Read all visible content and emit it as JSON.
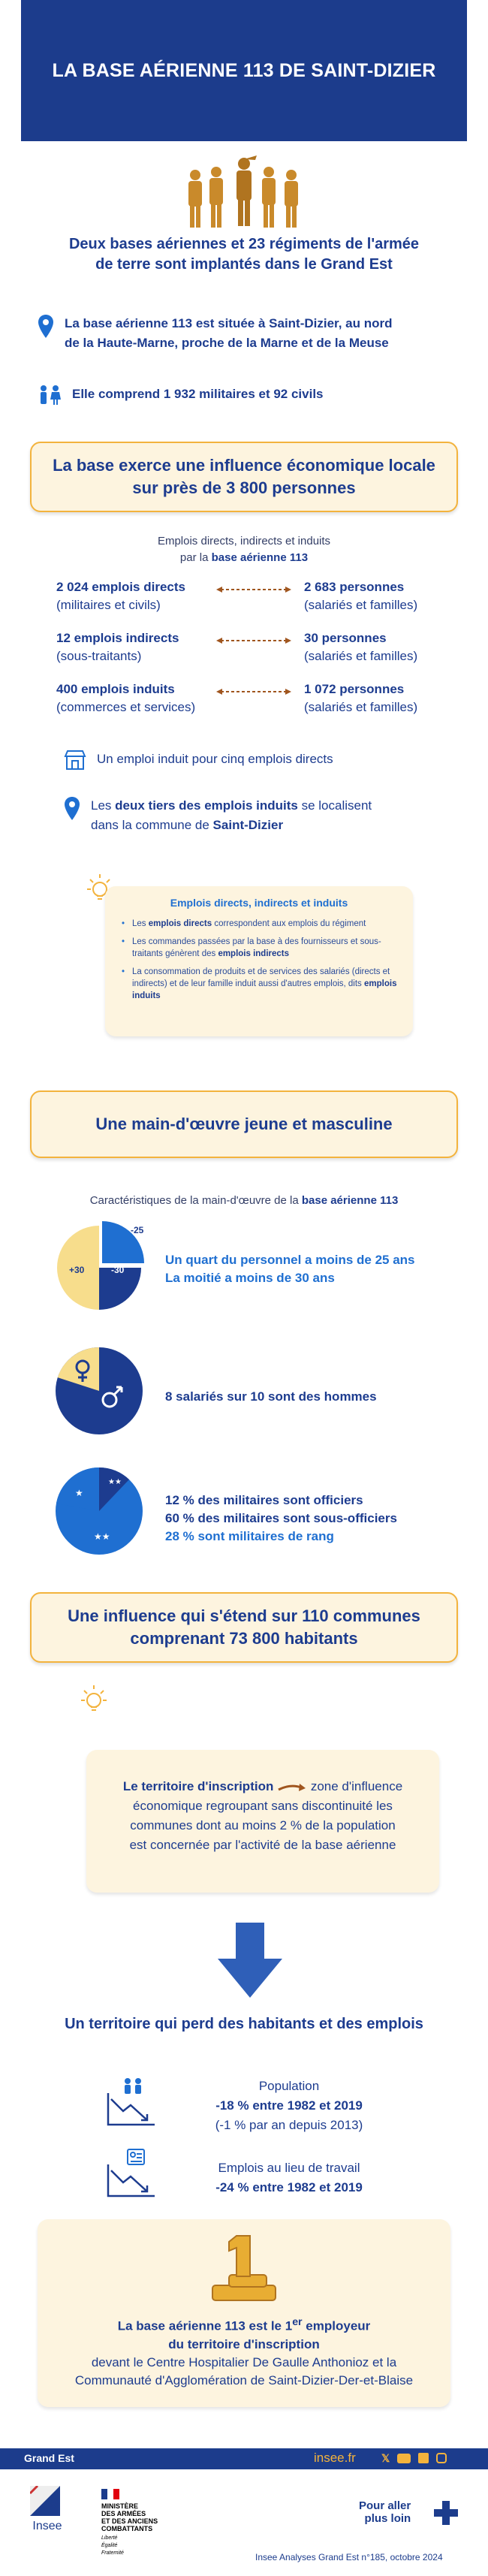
{
  "header": {
    "title": "LA BASE AÉRIENNE 113 DE SAINT-DIZIER"
  },
  "intro": {
    "line1": "Deux bases aériennes et 23 régiments de l'armée",
    "line2": "de terre sont implantés dans le Grand Est"
  },
  "facts": {
    "location_line1": "La base aérienne 113 est située à Saint-Dizier, au nord",
    "location_line2": "de la Haute-Marne, proche de la Marne et de la Meuse",
    "staff": "Elle comprend 1 932 militaires et 92 civils"
  },
  "section1": {
    "line1": "La base exerce une influence économique locale",
    "line2": "sur près de 3 800 personnes"
  },
  "employment": {
    "subtitle1": "Emplois directs, indirects et induits",
    "subtitle2_pre": "par la ",
    "subtitle2_bold": "base aérienne 113",
    "rows": [
      {
        "left_bold": "2 024 emplois directs",
        "left_sub": "(militaires et civils)",
        "right_bold": "2 683 personnes",
        "right_sub": "(salariés et familles)"
      },
      {
        "left_bold": "12 emplois indirects",
        "left_sub": "(sous-traitants)",
        "right_bold": "30 personnes",
        "right_sub": "(salariés et familles)"
      },
      {
        "left_bold": "400 emplois induits",
        "left_sub": "(commerces et services)",
        "right_bold": "1 072 personnes",
        "right_sub": "(salariés et familles)"
      }
    ],
    "note1": "Un emploi induit pour cinq emplois directs",
    "note2_a": "Les ",
    "note2_b": "deux tiers des emplois induits",
    "note2_c": " se localisent",
    "note2_d": "dans la commune de ",
    "note2_e": "Saint-Dizier"
  },
  "definition": {
    "title": "Emplois directs, indirects et induits",
    "item1_a": "Les ",
    "item1_b": "emplois directs",
    "item1_c": " correspondent aux emplois du régiment",
    "item2_a": "Les commandes passées par la base à des fournisseurs et sous-traitants génèrent des ",
    "item2_b": "emplois indirects",
    "item3_a": "La consommation de produits et de services des salariés (directs et indirects) et de leur famille induit aussi d'autres emplois, dits ",
    "item3_b": "emplois induits"
  },
  "section2": {
    "title": "Une main-d'œuvre jeune et masculine"
  },
  "workforce": {
    "subtitle_pre": "Caractéristiques de la main-d'œuvre de la ",
    "subtitle_bold": "base aérienne 113",
    "age_labels": {
      "under25": "-25",
      "under30": "-30",
      "over30": "+30"
    },
    "age_line1": "Un quart du personnel a moins de 25 ans",
    "age_line2": "La moitié a moins de 30 ans",
    "gender_line": "8 salariés sur 10 sont des hommes",
    "rank_line1": "12 % des militaires sont officiers",
    "rank_line2": "60 % des militaires sont sous-officiers",
    "rank_line3": "28 % sont militaires de rang"
  },
  "section3": {
    "line1": "Une influence qui s'étend sur 110 communes",
    "line2": "comprenant 73 800 habitants"
  },
  "territory": {
    "bold": "Le territoire d'inscription",
    "rest1": "zone d'influence",
    "rest2": "économique regroupant sans discontinuité les",
    "rest3": "communes dont au moins 2 % de la population",
    "rest4": "est concernée par l'activité de la base aérienne"
  },
  "decline": {
    "title": "Un territoire qui perd des habitants et des emplois",
    "pop_label": "Population",
    "pop_value": "-18 % entre 1982 et 2019",
    "pop_sub": "(-1 % par an depuis 2013)",
    "jobs_label": "Emplois au lieu de travail",
    "jobs_value": "-24 % entre 1982 et 2019"
  },
  "final": {
    "line1_a": "La base aérienne 113 est le 1",
    "line1_sup": "er",
    "line1_b": " employeur",
    "line2": "du territoire d'inscription",
    "line3": "devant le Centre Hospitalier De Gaulle Anthonioz et la",
    "line4": "Communauté d'Agglomération de Saint-Dizier-Der-et-Blaise",
    "medal_number": "1"
  },
  "footer": {
    "region": "Grand Est",
    "site": "insee.fr",
    "insee_logo": "Insee",
    "ministry_line1": "MINISTÈRE",
    "ministry_line2": "DES ARMÉES",
    "ministry_line3": "ET DES ANCIENS",
    "ministry_line4": "COMBATTANTS",
    "motto1": "Liberté",
    "motto2": "Égalité",
    "motto3": "Fraternité",
    "more_line1": "Pour aller",
    "more_line2": "plus loin",
    "reference": "Insee Analyses Grand Est n°185, octobre 2024",
    "social_icons": [
      "x-icon",
      "youtube-icon",
      "linkedin-icon",
      "instagram-icon"
    ]
  },
  "colors": {
    "navy": "#1c3c8c",
    "accent": "#1f6fd1",
    "gold": "#f3b33d",
    "cream": "#fdf4df",
    "brown_arrow": "#a0561f"
  }
}
